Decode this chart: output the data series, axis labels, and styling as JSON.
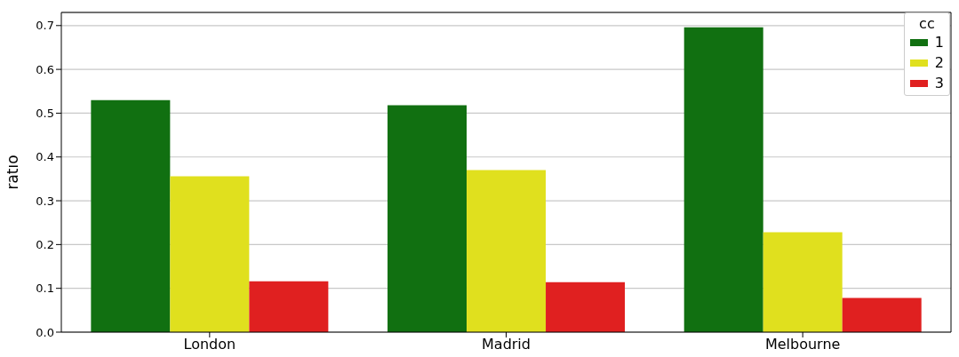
{
  "chart_data": {
    "type": "bar",
    "ylabel": "ratio",
    "legend_title": "cc",
    "categories": [
      "London",
      "Madrid",
      "Melbourne"
    ],
    "series": [
      {
        "name": "1",
        "color": "#117011",
        "values": [
          0.53,
          0.518,
          0.696
        ]
      },
      {
        "name": "2",
        "color": "#e0e01e",
        "values": [
          0.356,
          0.37,
          0.228
        ]
      },
      {
        "name": "3",
        "color": "#e02020",
        "values": [
          0.116,
          0.114,
          0.078
        ]
      }
    ],
    "ylim": [
      0,
      0.73
    ],
    "yticks": [
      {
        "value": 0,
        "label": "0.0"
      },
      {
        "value": 0.1,
        "label": "0.1"
      },
      {
        "value": 0.2,
        "label": "0.2"
      },
      {
        "value": 0.3,
        "label": "0.3"
      },
      {
        "value": 0.4,
        "label": "0.4"
      },
      {
        "value": 0.5,
        "label": "0.5"
      },
      {
        "value": 0.6,
        "label": "0.6"
      },
      {
        "value": 0.7,
        "label": "0.7"
      }
    ],
    "grid": "y",
    "legend": "top right"
  }
}
